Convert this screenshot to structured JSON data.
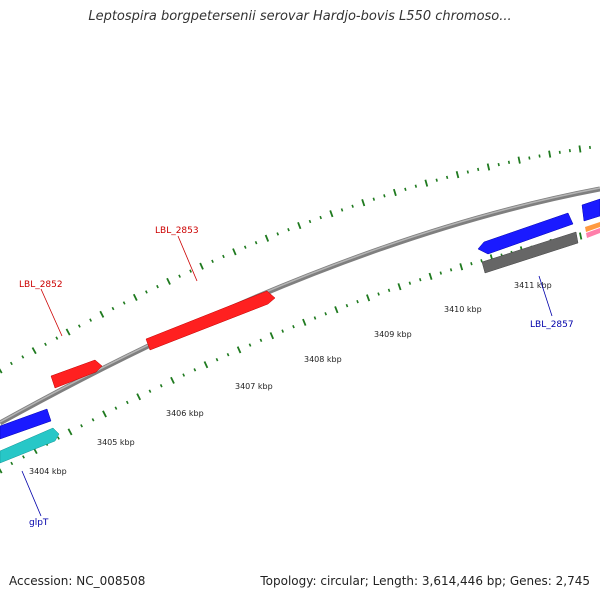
{
  "title": "Leptospira borgpetersenii serovar Hardjo-bovis L550 chromoso...",
  "footer": {
    "accession": "Accession: NC_008508",
    "summary": "Topology: circular; Length: 3,614,446 bp; Genes: 2,745"
  },
  "scale": {
    "labels": [
      "3404 kbp",
      "3405 kbp",
      "3406 kbp",
      "3407 kbp",
      "3408 kbp",
      "3409 kbp",
      "3410 kbp",
      "3411 kbp"
    ]
  },
  "genes": {
    "LBL_2852": {
      "label": "LBL_2852",
      "strand": "forward",
      "color": "#ff2020"
    },
    "LBL_2853": {
      "label": "LBL_2853",
      "strand": "forward",
      "color": "#ff2020"
    },
    "LBL_2857": {
      "label": "LBL_2857",
      "strand": "reverse",
      "color": "#1a1aff"
    },
    "glpT": {
      "label": "glpT",
      "strand": "reverse",
      "color": "#1a1aff"
    }
  },
  "colors": {
    "backbone": "#8c8c8c",
    "ticks": "#1f7a1f",
    "red_gene": "#ff2020",
    "blue_gene": "#1a1aff",
    "cyan_gene": "#27c7c7",
    "gray_gene": "#666666",
    "label_red": "#cc0000",
    "label_blue": "#0000aa"
  }
}
